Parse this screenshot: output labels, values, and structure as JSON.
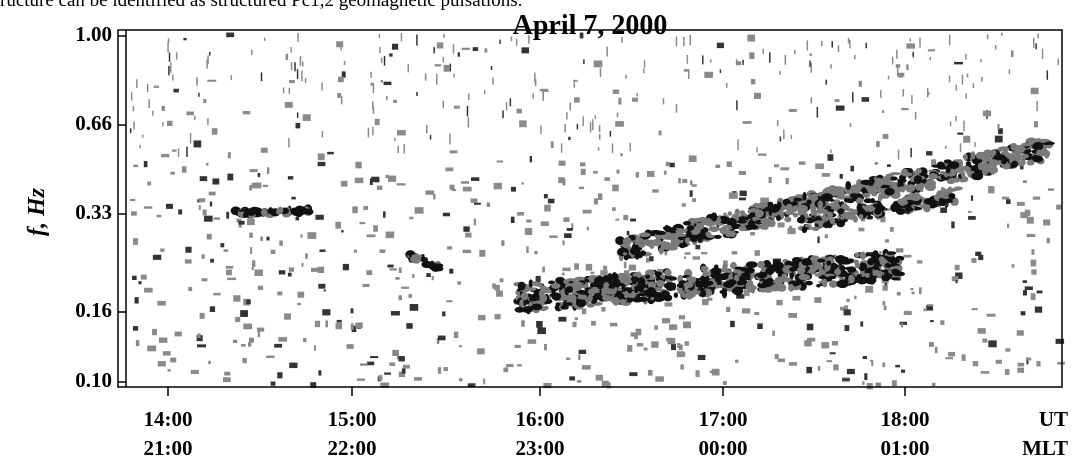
{
  "caption_fragment": "ructure can be identified as structured Pc1,2 geomagnetic pulsations.",
  "figure": {
    "title": "April  7,  2000",
    "y_label": "f, Hz",
    "y_ticks": [
      "1.00",
      "0.66",
      "0.33",
      "0.16",
      "0.10"
    ],
    "x_ticks": [
      {
        "ut": "14:00",
        "mlt": "21:00"
      },
      {
        "ut": "15:00",
        "mlt": "22:00"
      },
      {
        "ut": "16:00",
        "mlt": "23:00"
      },
      {
        "ut": "17:00",
        "mlt": "00:00"
      },
      {
        "ut": "18:00",
        "mlt": "01:00"
      }
    ],
    "x_units": {
      "ut": "UT",
      "mlt": "MLT"
    }
  }
}
